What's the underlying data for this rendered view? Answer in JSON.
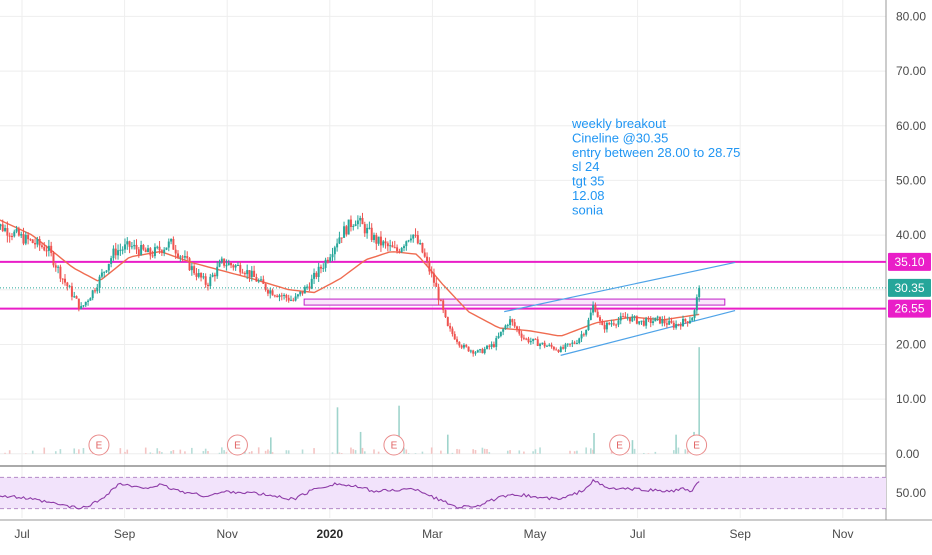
{
  "chart_data": {
    "type": "candlestick",
    "price_axis": {
      "min": -1.5,
      "max": 83,
      "ticks": [
        {
          "value": 80,
          "label": "80.00"
        },
        {
          "value": 70,
          "label": "70.00"
        },
        {
          "value": 60,
          "label": "60.00"
        },
        {
          "value": 50,
          "label": "50.00"
        },
        {
          "value": 40,
          "label": "40.00"
        },
        {
          "value": 30,
          "label": ""
        },
        {
          "value": 20,
          "label": "20.00"
        },
        {
          "value": 10,
          "label": "10.00"
        },
        {
          "value": 0,
          "label": "0.00"
        }
      ]
    },
    "rsi_axis": {
      "min": 18,
      "max": 82,
      "ticks": [
        {
          "value": 50,
          "label": "50.00"
        }
      ],
      "band": [
        30,
        70
      ]
    },
    "time_axis": {
      "labels": [
        {
          "t": 0.3,
          "label": "Jul",
          "bold": false
        },
        {
          "t": 2.3,
          "label": "Sep",
          "bold": false
        },
        {
          "t": 4.3,
          "label": "Nov",
          "bold": false
        },
        {
          "t": 6.3,
          "label": "2020",
          "bold": true
        },
        {
          "t": 8.3,
          "label": "Mar",
          "bold": false
        },
        {
          "t": 10.3,
          "label": "May",
          "bold": false
        },
        {
          "t": 12.3,
          "label": "Jul",
          "bold": false
        },
        {
          "t": 14.3,
          "label": "Sep",
          "bold": false
        },
        {
          "t": 16.3,
          "label": "Nov",
          "bold": false
        }
      ]
    },
    "key_points": [
      [
        -0.3,
        42.5
      ],
      [
        0.3,
        39.5
      ],
      [
        0.8,
        37.5
      ],
      [
        1.1,
        32
      ],
      [
        1.45,
        26.5
      ],
      [
        1.7,
        30
      ],
      [
        2.1,
        37
      ],
      [
        2.4,
        38
      ],
      [
        2.8,
        36.5
      ],
      [
        3.2,
        38.5
      ],
      [
        3.6,
        34
      ],
      [
        3.9,
        31
      ],
      [
        4.2,
        35
      ],
      [
        4.6,
        34
      ],
      [
        5.1,
        30
      ],
      [
        5.6,
        28
      ],
      [
        5.9,
        31
      ],
      [
        6.2,
        35
      ],
      [
        6.5,
        40
      ],
      [
        6.8,
        43
      ],
      [
        7.2,
        39
      ],
      [
        7.6,
        37
      ],
      [
        7.9,
        40.5
      ],
      [
        8.1,
        37
      ],
      [
        8.35,
        31
      ],
      [
        8.6,
        23
      ],
      [
        8.9,
        19.5
      ],
      [
        9.2,
        18.5
      ],
      [
        9.5,
        20
      ],
      [
        9.8,
        24.5
      ],
      [
        10.1,
        21
      ],
      [
        10.45,
        20
      ],
      [
        10.8,
        19
      ],
      [
        11.1,
        20.5
      ],
      [
        11.3,
        23
      ],
      [
        11.45,
        27.5
      ],
      [
        11.6,
        23
      ],
      [
        11.8,
        24
      ],
      [
        12.1,
        25
      ],
      [
        12.4,
        24
      ],
      [
        12.7,
        24.5
      ],
      [
        13.0,
        23.5
      ],
      [
        13.3,
        24.5
      ],
      [
        13.4,
        25.5
      ],
      [
        13.5,
        30.35
      ]
    ],
    "ma_points": [
      [
        -0.3,
        43.5
      ],
      [
        0.5,
        40
      ],
      [
        1.3,
        34
      ],
      [
        1.8,
        31.5
      ],
      [
        2.4,
        36
      ],
      [
        3.0,
        37
      ],
      [
        3.6,
        35
      ],
      [
        4.2,
        33.5
      ],
      [
        4.8,
        32
      ],
      [
        5.5,
        30
      ],
      [
        6.0,
        29.5
      ],
      [
        6.5,
        32
      ],
      [
        7.0,
        35.5
      ],
      [
        7.5,
        37
      ],
      [
        8.0,
        36.5
      ],
      [
        8.5,
        31
      ],
      [
        9.0,
        26
      ],
      [
        9.6,
        23
      ],
      [
        10.2,
        22.5
      ],
      [
        10.8,
        21.5
      ],
      [
        11.5,
        24
      ],
      [
        12.2,
        25
      ],
      [
        12.8,
        24.5
      ],
      [
        13.5,
        25.5
      ]
    ],
    "rsi_points": [
      [
        -0.3,
        47
      ],
      [
        0.3,
        44
      ],
      [
        0.8,
        38
      ],
      [
        1.45,
        30
      ],
      [
        1.8,
        40
      ],
      [
        2.2,
        62
      ],
      [
        2.6,
        56
      ],
      [
        3.0,
        60
      ],
      [
        3.4,
        52
      ],
      [
        3.9,
        46
      ],
      [
        4.3,
        52
      ],
      [
        4.8,
        50
      ],
      [
        5.3,
        45
      ],
      [
        5.6,
        42
      ],
      [
        6.0,
        55
      ],
      [
        6.4,
        62
      ],
      [
        6.8,
        58
      ],
      [
        7.2,
        52
      ],
      [
        7.6,
        54
      ],
      [
        8.0,
        55
      ],
      [
        8.4,
        42
      ],
      [
        8.8,
        32
      ],
      [
        9.2,
        34
      ],
      [
        9.6,
        44
      ],
      [
        10.0,
        48
      ],
      [
        10.4,
        44
      ],
      [
        10.8,
        42
      ],
      [
        11.2,
        52
      ],
      [
        11.45,
        66
      ],
      [
        11.7,
        56
      ],
      [
        12.1,
        55
      ],
      [
        12.5,
        54
      ],
      [
        12.9,
        52
      ],
      [
        13.2,
        55
      ],
      [
        13.35,
        52
      ],
      [
        13.5,
        64
      ]
    ],
    "volume_spikes": [
      {
        "t": 5.15,
        "v": 3
      },
      {
        "t": 6.45,
        "v": 8.5
      },
      {
        "t": 6.9,
        "v": 4
      },
      {
        "t": 7.65,
        "v": 8.8
      },
      {
        "t": 8.6,
        "v": 3.5
      },
      {
        "t": 11.45,
        "v": 3.8
      },
      {
        "t": 12.2,
        "v": 2.5
      },
      {
        "t": 13.05,
        "v": 3.5
      },
      {
        "t": 13.4,
        "v": 4
      },
      {
        "t": 13.5,
        "v": 19.5
      }
    ],
    "horizontal_levels": [
      {
        "value": 35.1,
        "label": "35.10",
        "color": "#e91ec8"
      },
      {
        "value": 26.55,
        "label": "26.55",
        "color": "#e91ec8"
      }
    ],
    "last_price": {
      "value": 30.35,
      "label": "30.35",
      "color": "#26a69a"
    },
    "zone": {
      "t_start": 5.8,
      "t_end": 14.0,
      "from": 27.2,
      "to": 28.3,
      "color": "#c01ec8"
    },
    "trend_lines": [
      {
        "t1": 9.7,
        "p1": 26.0,
        "t2": 14.2,
        "p2": 35.0
      },
      {
        "t1": 10.8,
        "p1": 18.0,
        "t2": 14.2,
        "p2": 26.2
      }
    ],
    "earnings_events": [
      {
        "t": 1.8,
        "label": "E"
      },
      {
        "t": 4.5,
        "label": "E"
      },
      {
        "t": 7.55,
        "label": "E"
      },
      {
        "t": 11.95,
        "label": "E"
      },
      {
        "t": 13.45,
        "label": "E"
      }
    ],
    "annotation": {
      "lines": [
        "weekly breakout",
        "Cineline @30.35",
        "entry between 28.00 to 28.75",
        "sl 24",
        "tgt 35",
        "12.08",
        "sonia"
      ],
      "color": "#2196f3"
    },
    "colors": {
      "up": "#26a69a",
      "down": "#ef5350",
      "ma": "#ef6c51",
      "rsi": "#8e3ca8",
      "rsi_band": "#f2e3fb",
      "trend": "#4fa3e8",
      "grid": "#eeeeee"
    }
  }
}
